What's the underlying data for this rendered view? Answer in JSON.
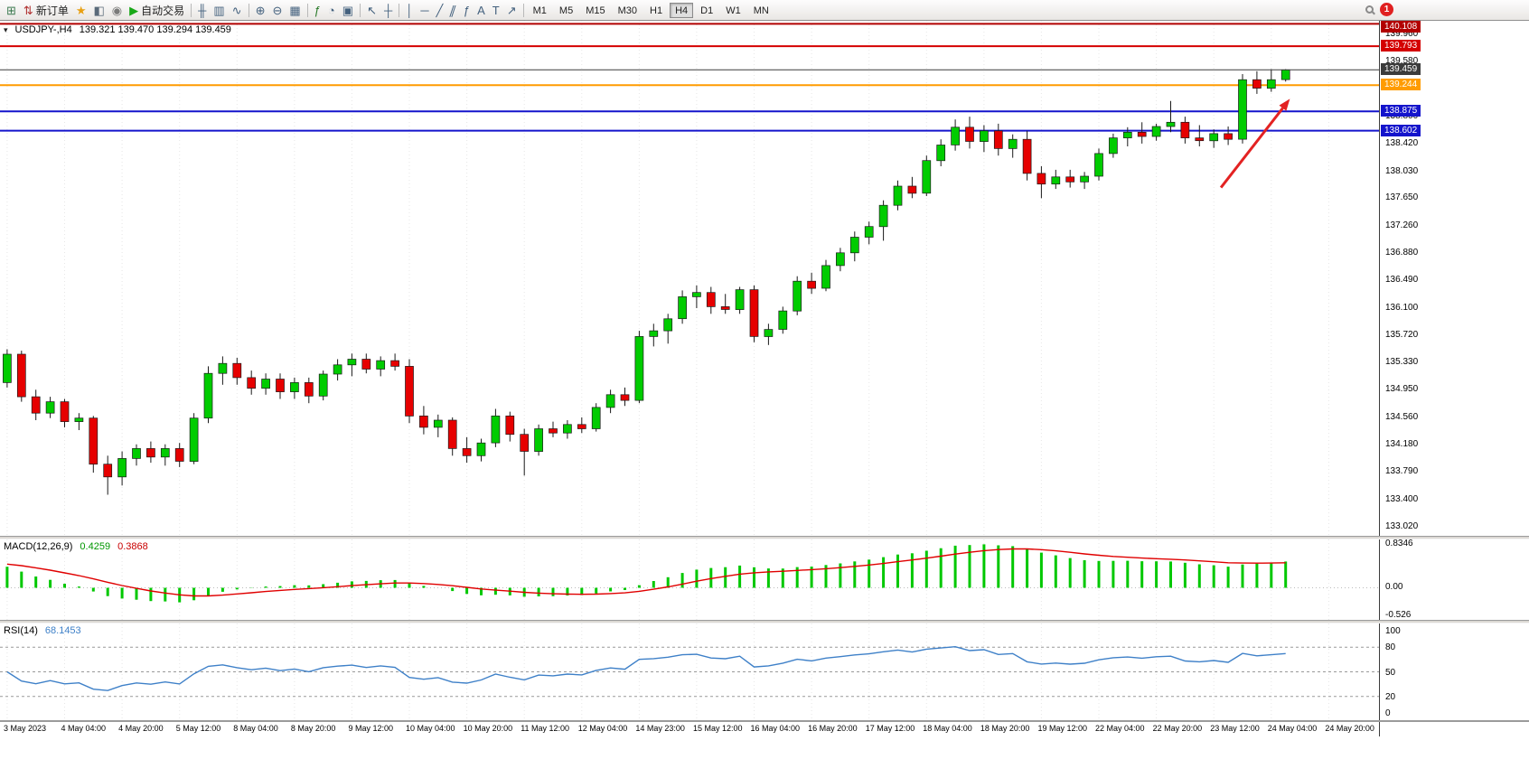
{
  "toolbar": {
    "groups": [
      {
        "items": [
          {
            "name": "new-chart",
            "glyph": "⊞",
            "color": "#3c7a50"
          },
          {
            "name": "new-order",
            "glyph": "⇅",
            "color": "#b03030",
            "label": "新订单"
          },
          {
            "name": "chart-assistant",
            "glyph": "★",
            "color": "#e8a013"
          },
          {
            "name": "profiles",
            "glyph": "◧",
            "color": "#5a6a7a"
          },
          {
            "name": "market-signal",
            "glyph": "◉",
            "color": "#7a7a7a"
          },
          {
            "name": "autotrading",
            "glyph": "▶",
            "color": "#18a818",
            "label": "自动交易"
          }
        ]
      },
      {
        "items": [
          {
            "name": "chart-bars",
            "glyph": "╫"
          },
          {
            "name": "chart-candles",
            "glyph": "▥"
          },
          {
            "name": "chart-line",
            "glyph": "∿"
          }
        ]
      },
      {
        "items": [
          {
            "name": "zoom-in",
            "glyph": "⊕"
          },
          {
            "name": "zoom-out",
            "glyph": "⊖"
          },
          {
            "name": "tile-windows",
            "glyph": "▦"
          }
        ]
      },
      {
        "items": [
          {
            "name": "indicators",
            "glyph": "ƒ",
            "color": "#2a7a2a"
          },
          {
            "name": "periods",
            "glyph": "◔"
          },
          {
            "name": "templates",
            "glyph": "▣"
          }
        ]
      },
      {
        "items": [
          {
            "name": "cursor",
            "glyph": "↖"
          },
          {
            "name": "crosshair",
            "glyph": "┼"
          }
        ]
      },
      {
        "items": [
          {
            "name": "vertical-line-tool",
            "glyph": "│"
          },
          {
            "name": "horizontal-line-tool",
            "glyph": "─"
          },
          {
            "name": "trendline-tool",
            "glyph": "╱"
          },
          {
            "name": "channel-tool",
            "glyph": "∥",
            "skew": true
          },
          {
            "name": "fibonacci-tool",
            "glyph": "ƒ"
          },
          {
            "name": "text-tool",
            "glyph": "A"
          },
          {
            "name": "label-tool",
            "glyph": "T"
          },
          {
            "name": "arrows-tool",
            "glyph": "↗"
          }
        ]
      }
    ],
    "timeframes": [
      "M1",
      "M5",
      "M15",
      "M30",
      "H1",
      "H4",
      "D1",
      "W1",
      "MN"
    ],
    "active_timeframe": "H4",
    "notification_count": "1"
  },
  "chart": {
    "dropdown_glyph": "▾",
    "title_symbol": "USDJPY-,H4",
    "title_ohlc": "139.321 139.470 139.294 139.459"
  },
  "chart_data": {
    "type": "candlestick",
    "symbol": "USDJPY",
    "timeframe": "H4",
    "slots": 96,
    "ylim": [
      132.89,
      140.151
    ],
    "colors": {
      "up": "#00CC00",
      "down": "#E60000",
      "outline": "#1a1a1a",
      "grid": "#e7e7e7"
    },
    "candles": [
      [
        135.05,
        135.52,
        134.98,
        135.45
      ],
      [
        135.45,
        135.5,
        134.78,
        134.85
      ],
      [
        134.85,
        134.95,
        134.52,
        134.62
      ],
      [
        134.62,
        134.85,
        134.55,
        134.78
      ],
      [
        134.78,
        134.82,
        134.42,
        134.5
      ],
      [
        134.5,
        134.62,
        134.38,
        134.55
      ],
      [
        134.55,
        134.58,
        133.78,
        133.9
      ],
      [
        133.9,
        134.02,
        133.47,
        133.72
      ],
      [
        133.72,
        134.08,
        133.6,
        133.98
      ],
      [
        133.98,
        134.18,
        133.88,
        134.12
      ],
      [
        134.12,
        134.22,
        133.92,
        134.0
      ],
      [
        134.0,
        134.18,
        133.88,
        134.12
      ],
      [
        134.12,
        134.2,
        133.86,
        133.94
      ],
      [
        133.94,
        134.62,
        133.9,
        134.55
      ],
      [
        134.55,
        135.28,
        134.48,
        135.18
      ],
      [
        135.18,
        135.42,
        135.02,
        135.32
      ],
      [
        135.32,
        135.4,
        135.02,
        135.12
      ],
      [
        135.12,
        135.22,
        134.88,
        134.97
      ],
      [
        134.97,
        135.18,
        134.88,
        135.1
      ],
      [
        135.1,
        135.18,
        134.82,
        134.92
      ],
      [
        134.92,
        135.12,
        134.82,
        135.05
      ],
      [
        135.05,
        135.12,
        134.76,
        134.86
      ],
      [
        134.86,
        135.22,
        134.8,
        135.17
      ],
      [
        135.17,
        135.38,
        135.08,
        135.3
      ],
      [
        135.3,
        135.46,
        135.14,
        135.38
      ],
      [
        135.38,
        135.46,
        135.18,
        135.24
      ],
      [
        135.24,
        135.42,
        135.14,
        135.36
      ],
      [
        135.36,
        135.46,
        135.22,
        135.28
      ],
      [
        135.28,
        135.38,
        134.48,
        134.58
      ],
      [
        134.58,
        134.72,
        134.32,
        134.42
      ],
      [
        134.42,
        134.6,
        134.28,
        134.52
      ],
      [
        134.52,
        134.56,
        134.02,
        134.12
      ],
      [
        134.12,
        134.28,
        133.92,
        134.02
      ],
      [
        134.02,
        134.26,
        133.94,
        134.2
      ],
      [
        134.2,
        134.68,
        134.14,
        134.58
      ],
      [
        134.58,
        134.64,
        134.22,
        134.32
      ],
      [
        134.32,
        134.4,
        133.74,
        134.08
      ],
      [
        134.08,
        134.46,
        134.02,
        134.4
      ],
      [
        134.4,
        134.5,
        134.28,
        134.34
      ],
      [
        134.34,
        134.52,
        134.26,
        134.46
      ],
      [
        134.46,
        134.56,
        134.34,
        134.4
      ],
      [
        134.4,
        134.76,
        134.36,
        134.7
      ],
      [
        134.7,
        134.95,
        134.62,
        134.88
      ],
      [
        134.88,
        134.98,
        134.72,
        134.8
      ],
      [
        134.8,
        135.78,
        134.76,
        135.7
      ],
      [
        135.7,
        135.88,
        135.56,
        135.78
      ],
      [
        135.78,
        136.02,
        135.6,
        135.95
      ],
      [
        135.95,
        136.35,
        135.88,
        136.26
      ],
      [
        136.26,
        136.42,
        136.1,
        136.32
      ],
      [
        136.32,
        136.4,
        136.02,
        136.12
      ],
      [
        136.12,
        136.3,
        136.02,
        136.08
      ],
      [
        136.08,
        136.4,
        136.02,
        136.36
      ],
      [
        136.36,
        136.42,
        135.62,
        135.7
      ],
      [
        135.7,
        135.88,
        135.58,
        135.8
      ],
      [
        135.8,
        136.12,
        135.74,
        136.06
      ],
      [
        136.06,
        136.55,
        136.0,
        136.48
      ],
      [
        136.48,
        136.6,
        136.3,
        136.38
      ],
      [
        136.38,
        136.78,
        136.34,
        136.7
      ],
      [
        136.7,
        136.95,
        136.62,
        136.88
      ],
      [
        136.88,
        137.18,
        136.76,
        137.1
      ],
      [
        137.1,
        137.32,
        137.0,
        137.25
      ],
      [
        137.25,
        137.62,
        137.05,
        137.55
      ],
      [
        137.55,
        137.9,
        137.48,
        137.82
      ],
      [
        137.82,
        137.95,
        137.65,
        137.72
      ],
      [
        137.72,
        138.25,
        137.68,
        138.18
      ],
      [
        138.18,
        138.48,
        138.1,
        138.4
      ],
      [
        138.4,
        138.76,
        138.32,
        138.65
      ],
      [
        138.65,
        138.8,
        138.35,
        138.45
      ],
      [
        138.45,
        138.68,
        138.3,
        138.6
      ],
      [
        138.6,
        138.7,
        138.25,
        138.35
      ],
      [
        138.35,
        138.55,
        138.22,
        138.48
      ],
      [
        138.48,
        138.6,
        137.9,
        138.0
      ],
      [
        138.0,
        138.1,
        137.65,
        137.85
      ],
      [
        137.85,
        138.05,
        137.78,
        137.95
      ],
      [
        137.95,
        138.05,
        137.8,
        137.88
      ],
      [
        137.88,
        138.02,
        137.78,
        137.96
      ],
      [
        137.96,
        138.35,
        137.9,
        138.28
      ],
      [
        138.28,
        138.56,
        138.22,
        138.5
      ],
      [
        138.5,
        138.65,
        138.38,
        138.58
      ],
      [
        138.58,
        138.72,
        138.42,
        138.52
      ],
      [
        138.52,
        138.7,
        138.46,
        138.66
      ],
      [
        138.66,
        139.02,
        138.58,
        138.72
      ],
      [
        138.72,
        138.8,
        138.42,
        138.5
      ],
      [
        138.5,
        138.68,
        138.38,
        138.46
      ],
      [
        138.46,
        138.62,
        138.36,
        138.56
      ],
      [
        138.56,
        138.66,
        138.4,
        138.48
      ],
      [
        138.48,
        139.4,
        138.42,
        139.32
      ],
      [
        139.32,
        139.44,
        139.12,
        139.2
      ],
      [
        139.2,
        139.47,
        139.15,
        139.321
      ],
      [
        139.321,
        139.47,
        139.294,
        139.459
      ]
    ],
    "price_axis_labels": [
      "139.960",
      "139.580",
      "139.190",
      "138.800",
      "138.420",
      "138.030",
      "137.650",
      "137.260",
      "136.880",
      "136.490",
      "136.100",
      "135.720",
      "135.330",
      "134.950",
      "134.560",
      "134.180",
      "133.790",
      "133.400",
      "133.020"
    ],
    "time_labels": [
      "3 May 2023",
      "4 May 04:00",
      "4 May 20:00",
      "5 May 12:00",
      "8 May 04:00",
      "8 May 20:00",
      "9 May 12:00",
      "10 May 04:00",
      "10 May 20:00",
      "11 May 12:00",
      "12 May 04:00",
      "14 May 23:00",
      "15 May 12:00",
      "16 May 04:00",
      "16 May 20:00",
      "17 May 12:00",
      "18 May 04:00",
      "18 May 20:00",
      "19 May 12:00",
      "22 May 04:00",
      "22 May 20:00",
      "23 May 12:00",
      "24 May 04:00",
      "24 May 20:00"
    ],
    "hlines": [
      {
        "price": 140.108,
        "label": "140.108",
        "color": "#B20000",
        "width": 2
      },
      {
        "price": 139.793,
        "label": "139.793",
        "color": "#D40000",
        "width": 2
      },
      {
        "price": 139.244,
        "label": "139.244",
        "color": "#FF9C00",
        "width": 2
      },
      {
        "price": 138.875,
        "label": "138.875",
        "color": "#1414CC",
        "width": 2
      },
      {
        "price": 138.602,
        "label": "138.602",
        "color": "#1414CC",
        "width": 2
      }
    ],
    "current_price": {
      "price": 139.459,
      "label": "139.459",
      "color": "#3C3C3C",
      "width": 1
    },
    "arrow": {
      "from_slot": 84.5,
      "from_price": 137.8,
      "to_slot": 89.3,
      "to_price": 139.05,
      "color": "#E32222"
    },
    "macd": {
      "label": "MACD(12,26,9)",
      "value_main": "0.4259",
      "value_signal": "0.3868",
      "hist_color": "#00C800",
      "signal_color": "#E00000",
      "scale_labels": [
        "0.8346",
        "0.00",
        "-0.526"
      ]
    },
    "rsi": {
      "label": "RSI(14)",
      "value": "68.1453",
      "line_color": "#3E80C8",
      "levels": [
        80,
        50,
        20
      ],
      "scale_labels": [
        "100",
        "80",
        "50",
        "20",
        "0"
      ]
    }
  }
}
